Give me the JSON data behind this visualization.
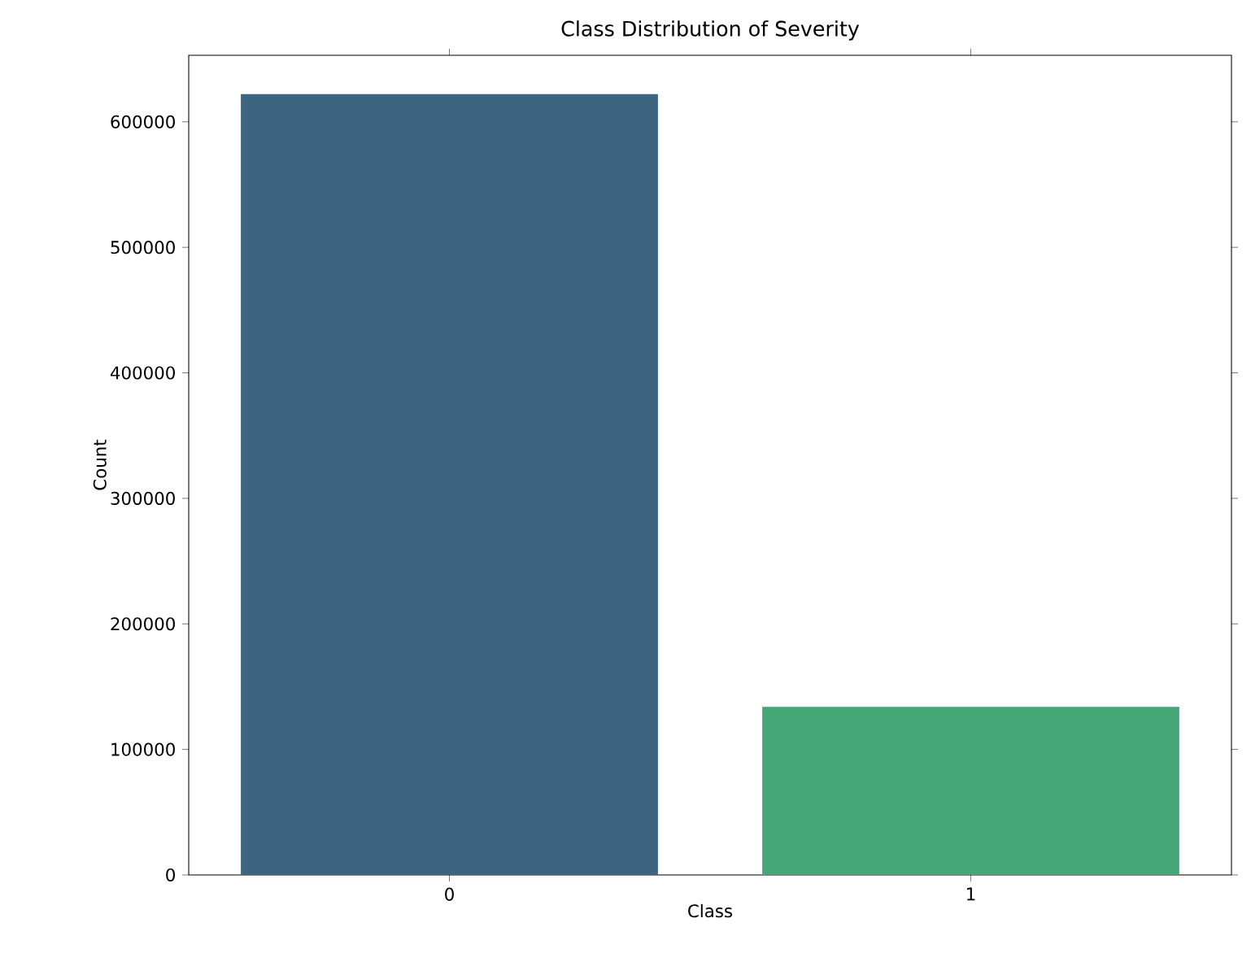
{
  "chart_data": {
    "type": "bar",
    "title": "Class Distribution of Severity",
    "xlabel": "Class",
    "ylabel": "Count",
    "categories": [
      "0",
      "1"
    ],
    "values": [
      622000,
      134000
    ],
    "colors": [
      "#3d6580",
      "#45a776"
    ],
    "ylim": [
      0,
      653000
    ],
    "yticks": [
      0,
      100000,
      200000,
      300000,
      400000,
      500000,
      600000
    ]
  }
}
